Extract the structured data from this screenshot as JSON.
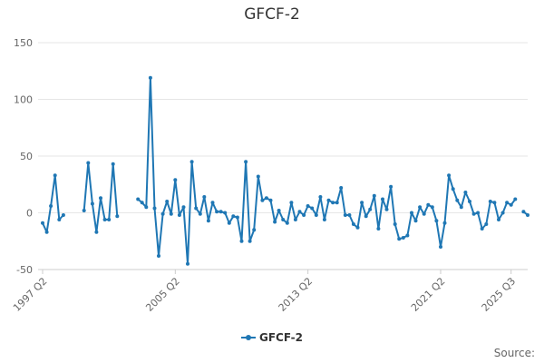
{
  "chart_data": {
    "type": "line",
    "title": "GFCF-2",
    "source_label": "Source:",
    "y_ticks": [
      "150",
      "100",
      "50",
      "0",
      "-50"
    ],
    "y_tick_values": [
      150,
      100,
      50,
      0,
      -50
    ],
    "ylim": [
      -50,
      150
    ],
    "x_tick_labels": [
      "1997 Q2",
      "2005 Q2",
      "2013 Q2",
      "2021 Q2",
      "2025 Q3"
    ],
    "x_tick_index": [
      0,
      32,
      64,
      96,
      113
    ],
    "legend_position": "bottom-center",
    "grid": "horizontal",
    "accent_color": "#1f77b4",
    "series": [
      {
        "name": "GFCF-2",
        "values": [
          -9,
          -17,
          6,
          33,
          -6,
          -2,
          null,
          null,
          null,
          null,
          2,
          44,
          8,
          -17,
          13,
          -6,
          -6,
          43,
          -3,
          null,
          null,
          null,
          null,
          12,
          9,
          5,
          119,
          4,
          -38,
          -1,
          10,
          -1,
          29,
          -2,
          5,
          -45,
          45,
          4,
          -1,
          14,
          -7,
          9,
          1,
          1,
          0,
          -9,
          -3,
          -4,
          -25,
          45,
          -25,
          -15,
          32,
          11,
          13,
          11,
          -8,
          2,
          -6,
          -9,
          9,
          -6,
          1,
          -2,
          6,
          4,
          -2,
          14,
          -6,
          11,
          9,
          9,
          22,
          -2,
          -2,
          -10,
          -13,
          9,
          -3,
          3,
          15,
          -14,
          12,
          3,
          23,
          -10,
          -23,
          -22,
          -20,
          0,
          -7,
          5,
          -1,
          7,
          5,
          -7,
          -30,
          -9,
          33,
          21,
          11,
          5,
          18,
          10,
          -1,
          0,
          -14,
          -10,
          10,
          9,
          -6,
          0,
          9,
          7,
          12,
          null,
          1,
          -2
        ]
      }
    ]
  }
}
